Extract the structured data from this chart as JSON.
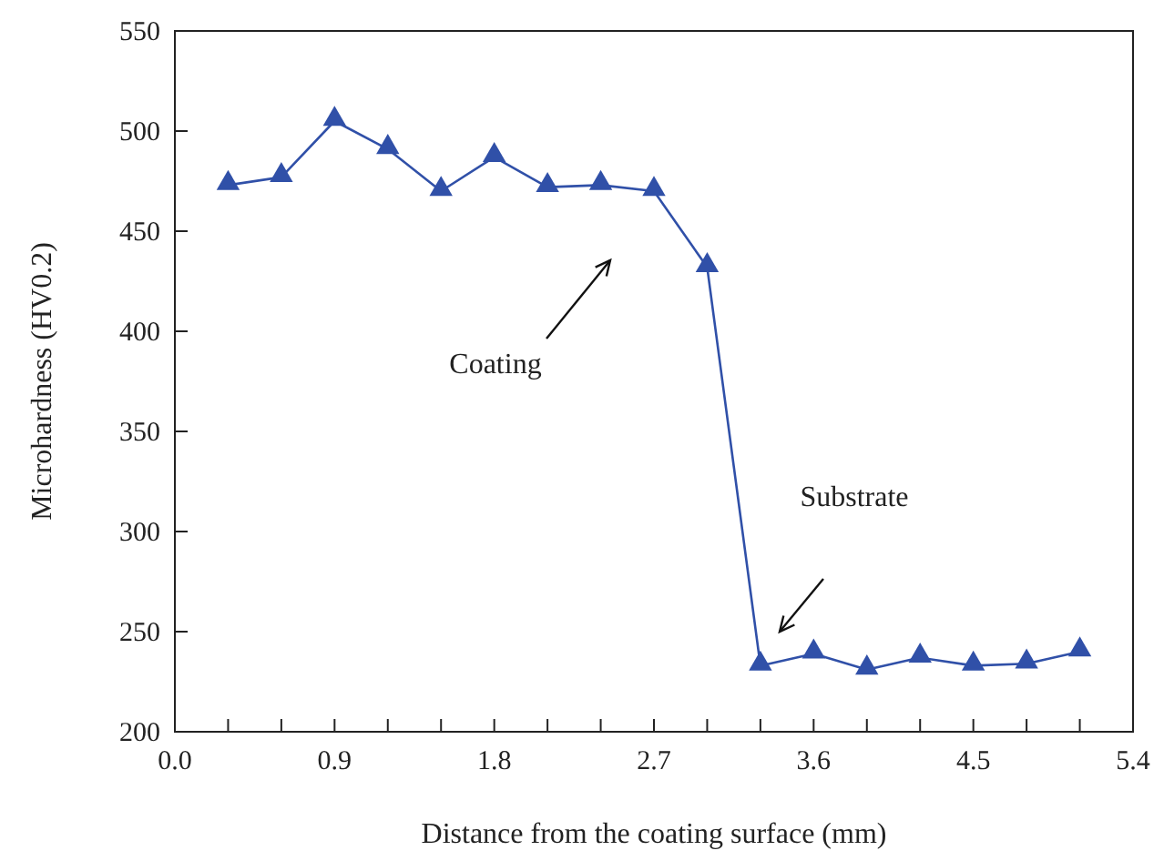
{
  "chart_data": {
    "type": "line",
    "xlabel": "Distance from the coating surface (mm)",
    "ylabel": "Microhardness (HV0.2)",
    "x": [
      0.3,
      0.6,
      0.9,
      1.2,
      1.5,
      1.8,
      2.1,
      2.4,
      2.7,
      3.0,
      3.3,
      3.6,
      3.9,
      4.2,
      4.5,
      4.8,
      5.1
    ],
    "series": [
      {
        "color": "#3050a8",
        "values": [
          473,
          477,
          505,
          491,
          470,
          487,
          472,
          473,
          470,
          432,
          233,
          239,
          231,
          237,
          233,
          234,
          240
        ]
      }
    ],
    "xlim": [
      0,
      5.4
    ],
    "xticks": [
      {
        "value": 0.0,
        "label": "0.0"
      },
      {
        "value": 0.3,
        "label": null
      },
      {
        "value": 0.6,
        "label": null
      },
      {
        "value": 0.9,
        "label": "0.9"
      },
      {
        "value": 1.2,
        "label": null
      },
      {
        "value": 1.5,
        "label": null
      },
      {
        "value": 1.8,
        "label": "1.8"
      },
      {
        "value": 2.1,
        "label": null
      },
      {
        "value": 2.4,
        "label": null
      },
      {
        "value": 2.7,
        "label": "2.7"
      },
      {
        "value": 3.0,
        "label": null
      },
      {
        "value": 3.3,
        "label": null
      },
      {
        "value": 3.6,
        "label": "3.6"
      },
      {
        "value": 3.9,
        "label": null
      },
      {
        "value": 4.2,
        "label": null
      },
      {
        "value": 4.5,
        "label": "4.5"
      },
      {
        "value": 4.8,
        "label": null
      },
      {
        "value": 5.1,
        "label": null
      },
      {
        "value": 5.4,
        "label": "5.4"
      }
    ],
    "ylim": [
      200,
      550
    ],
    "yticks": [
      200,
      250,
      300,
      350,
      400,
      450,
      500,
      550
    ],
    "marker": "triangle",
    "line_style": "solid",
    "grid": false,
    "annotations": [
      "Coating",
      "Substrate"
    ]
  }
}
